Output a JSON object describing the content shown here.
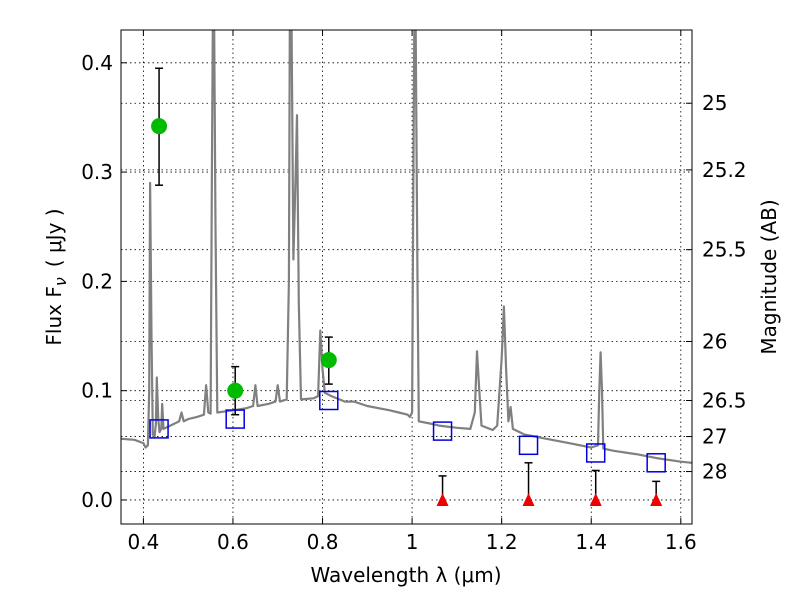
{
  "chart_data": {
    "type": "scatter",
    "xlabel": "Wavelength  λ (μm)",
    "ylabel_left": "Flux  F",
    "ylabel_left_sub": "ν",
    "ylabel_left_unit": "( μJy )",
    "ylabel_right": "Magnitude (AB)",
    "xlim": [
      0.35,
      1.625
    ],
    "ylim": [
      -0.022,
      0.43
    ],
    "x_ticks": [
      0.4,
      0.6,
      0.8,
      1.0,
      1.2,
      1.4,
      1.6
    ],
    "x_tick_labels": [
      "0.4",
      "0.6",
      "0.8",
      "1",
      "1.2",
      "1.4",
      "1.6"
    ],
    "y_ticks": [
      0.0,
      0.1,
      0.2,
      0.3,
      0.4
    ],
    "y_tick_labels": [
      "0.0",
      "0.1",
      "0.2",
      "0.3",
      "0.4"
    ],
    "right_ticks": [
      {
        "label": "25",
        "flux": 0.363
      },
      {
        "label": "25.2",
        "flux": 0.302
      },
      {
        "label": "25.5",
        "flux": 0.229
      },
      {
        "label": "26",
        "flux": 0.145
      },
      {
        "label": "26.5",
        "flux": 0.091
      },
      {
        "label": "27",
        "flux": 0.058
      },
      {
        "label": "28",
        "flux": 0.026
      }
    ],
    "grid": true,
    "colors": {
      "spectrum": "#808080",
      "detections": "#00bb00",
      "model": "#0000dd",
      "upper_limits": "#ee0000",
      "errorbars": "#000000"
    },
    "series": [
      {
        "kind": "spectrum",
        "points": [
          [
            0.35,
            0.056
          ],
          [
            0.38,
            0.055
          ],
          [
            0.4,
            0.052
          ],
          [
            0.405,
            0.048
          ],
          [
            0.41,
            0.05
          ],
          [
            0.413,
            0.1
          ],
          [
            0.415,
            0.29
          ],
          [
            0.418,
            0.15
          ],
          [
            0.421,
            0.06
          ],
          [
            0.425,
            0.058
          ],
          [
            0.428,
            0.07
          ],
          [
            0.43,
            0.112
          ],
          [
            0.433,
            0.075
          ],
          [
            0.436,
            0.062
          ],
          [
            0.44,
            0.065
          ],
          [
            0.442,
            0.088
          ],
          [
            0.445,
            0.065
          ],
          [
            0.46,
            0.068
          ],
          [
            0.47,
            0.07
          ],
          [
            0.48,
            0.072
          ],
          [
            0.485,
            0.08
          ],
          [
            0.49,
            0.072
          ],
          [
            0.5,
            0.074
          ],
          [
            0.52,
            0.076
          ],
          [
            0.535,
            0.078
          ],
          [
            0.54,
            0.105
          ],
          [
            0.545,
            0.08
          ],
          [
            0.55,
            0.079
          ],
          [
            0.553,
            0.3
          ],
          [
            0.555,
            0.43
          ],
          [
            0.558,
            0.43
          ],
          [
            0.561,
            0.25
          ],
          [
            0.565,
            0.08
          ],
          [
            0.6,
            0.082
          ],
          [
            0.63,
            0.084
          ],
          [
            0.645,
            0.086
          ],
          [
            0.65,
            0.105
          ],
          [
            0.655,
            0.086
          ],
          [
            0.68,
            0.088
          ],
          [
            0.695,
            0.09
          ],
          [
            0.7,
            0.105
          ],
          [
            0.705,
            0.09
          ],
          [
            0.72,
            0.092
          ],
          [
            0.725,
            0.2
          ],
          [
            0.727,
            0.43
          ],
          [
            0.731,
            0.43
          ],
          [
            0.735,
            0.22
          ],
          [
            0.74,
            0.3
          ],
          [
            0.743,
            0.352
          ],
          [
            0.747,
            0.18
          ],
          [
            0.752,
            0.092
          ],
          [
            0.78,
            0.093
          ],
          [
            0.79,
            0.095
          ],
          [
            0.795,
            0.155
          ],
          [
            0.8,
            0.12
          ],
          [
            0.805,
            0.098
          ],
          [
            0.82,
            0.095
          ],
          [
            0.85,
            0.09
          ],
          [
            0.87,
            0.09
          ],
          [
            0.9,
            0.086
          ],
          [
            0.95,
            0.082
          ],
          [
            0.97,
            0.08
          ],
          [
            0.99,
            0.078
          ],
          [
            0.995,
            0.076
          ],
          [
            1.0,
            0.08
          ],
          [
            1.003,
            0.3
          ],
          [
            1.005,
            0.43
          ],
          [
            1.008,
            0.43
          ],
          [
            1.012,
            0.2
          ],
          [
            1.015,
            0.072
          ],
          [
            1.04,
            0.07
          ],
          [
            1.06,
            0.068
          ],
          [
            1.1,
            0.066
          ],
          [
            1.13,
            0.065
          ],
          [
            1.14,
            0.08
          ],
          [
            1.145,
            0.136
          ],
          [
            1.15,
            0.1
          ],
          [
            1.155,
            0.068
          ],
          [
            1.18,
            0.064
          ],
          [
            1.19,
            0.068
          ],
          [
            1.2,
            0.13
          ],
          [
            1.205,
            0.177
          ],
          [
            1.21,
            0.12
          ],
          [
            1.215,
            0.072
          ],
          [
            1.22,
            0.085
          ],
          [
            1.225,
            0.065
          ],
          [
            1.25,
            0.06
          ],
          [
            1.3,
            0.056
          ],
          [
            1.35,
            0.052
          ],
          [
            1.4,
            0.048
          ],
          [
            1.415,
            0.05
          ],
          [
            1.418,
            0.1
          ],
          [
            1.421,
            0.135
          ],
          [
            1.424,
            0.1
          ],
          [
            1.427,
            0.047
          ],
          [
            1.45,
            0.045
          ],
          [
            1.5,
            0.042
          ],
          [
            1.55,
            0.038
          ],
          [
            1.6,
            0.035
          ],
          [
            1.625,
            0.034
          ]
        ]
      },
      {
        "kind": "detections",
        "points": [
          {
            "x": 0.435,
            "y": 0.342,
            "ylow": 0.288,
            "yhigh": 0.395
          },
          {
            "x": 0.605,
            "y": 0.1,
            "ylow": 0.078,
            "yhigh": 0.122
          },
          {
            "x": 0.814,
            "y": 0.128,
            "ylow": 0.106,
            "yhigh": 0.149
          }
        ]
      },
      {
        "kind": "model_photometry",
        "points": [
          {
            "x": 0.435,
            "y": 0.065
          },
          {
            "x": 0.605,
            "y": 0.074
          },
          {
            "x": 0.814,
            "y": 0.091
          },
          {
            "x": 1.068,
            "y": 0.063
          },
          {
            "x": 1.26,
            "y": 0.05
          },
          {
            "x": 1.41,
            "y": 0.043
          },
          {
            "x": 1.545,
            "y": 0.034
          }
        ]
      },
      {
        "kind": "upper_limits",
        "points": [
          {
            "x": 1.068,
            "y": 0.0,
            "yhigh": 0.022
          },
          {
            "x": 1.26,
            "y": 0.0,
            "yhigh": 0.034
          },
          {
            "x": 1.41,
            "y": 0.0,
            "yhigh": 0.027
          },
          {
            "x": 1.545,
            "y": 0.0,
            "yhigh": 0.017
          }
        ]
      }
    ]
  }
}
